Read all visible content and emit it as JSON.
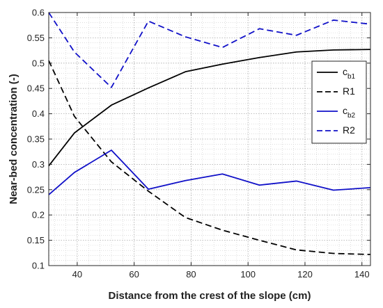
{
  "chart_data": {
    "type": "line",
    "xlabel": "Distance from the crest of the slope (cm)",
    "ylabel": "Near-bed concentration (-)",
    "xlim": [
      30,
      143
    ],
    "ylim": [
      0.1,
      0.6
    ],
    "xticks": [
      40,
      60,
      80,
      100,
      120,
      140
    ],
    "yticks": [
      0.1,
      0.15,
      0.2,
      0.25,
      0.3,
      0.35,
      0.4,
      0.45,
      0.5,
      0.55,
      0.6
    ],
    "xtick_labels": [
      "40",
      "60",
      "80",
      "100",
      "120",
      "140"
    ],
    "ytick_labels": [
      "0.1",
      "0.15",
      "0.2",
      "0.25",
      "0.3",
      "0.35",
      "0.4",
      "0.45",
      "0.5",
      "0.55",
      "0.6"
    ],
    "grid": "major and minor, dotted",
    "legend_position": "right",
    "series": [
      {
        "name": "c_b1",
        "legend_main": "c",
        "legend_sub": "b1",
        "color": "#000000",
        "dash": "solid",
        "x": [
          30,
          39,
          52,
          65,
          78,
          91,
          104,
          117,
          130,
          143
        ],
        "y": [
          0.297,
          0.362,
          0.417,
          0.451,
          0.483,
          0.498,
          0.511,
          0.522,
          0.526,
          0.527
        ]
      },
      {
        "name": "R1",
        "legend_main": "R1",
        "legend_sub": "",
        "color": "#000000",
        "dash": "dashed",
        "x": [
          30,
          39,
          52,
          65,
          78,
          91,
          104,
          117,
          130,
          143
        ],
        "y": [
          0.505,
          0.395,
          0.305,
          0.247,
          0.195,
          0.17,
          0.15,
          0.131,
          0.124,
          0.122
        ]
      },
      {
        "name": "c_b2",
        "legend_main": "c",
        "legend_sub": "b2",
        "color": "#1010c8",
        "dash": "solid",
        "x": [
          30,
          39,
          52,
          65,
          78,
          91,
          104,
          117,
          130,
          143
        ],
        "y": [
          0.24,
          0.284,
          0.328,
          0.251,
          0.268,
          0.281,
          0.259,
          0.267,
          0.249,
          0.254
        ]
      },
      {
        "name": "R2",
        "legend_main": "R2",
        "legend_sub": "",
        "color": "#1010c8",
        "dash": "dashed",
        "x": [
          30,
          39,
          52,
          65,
          78,
          91,
          104,
          117,
          130,
          143
        ],
        "y": [
          0.6,
          0.522,
          0.452,
          0.583,
          0.552,
          0.531,
          0.568,
          0.555,
          0.585,
          0.577
        ]
      }
    ]
  }
}
